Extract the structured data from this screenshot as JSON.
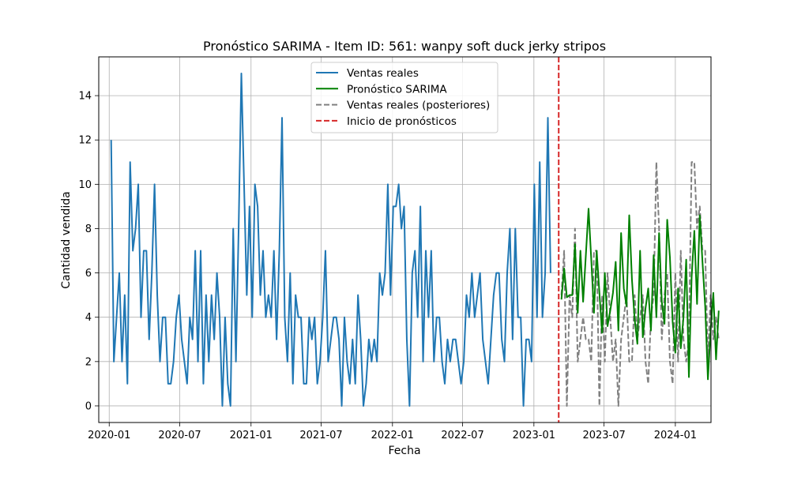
{
  "chart_data": {
    "type": "line",
    "title": "Pronóstico SARIMA - Item ID: 561: wanpy soft duck jerky stripos",
    "xlabel": "Fecha",
    "ylabel": "Cantidad vendida",
    "xlim": [
      "2019-12-05",
      "2024-04-02"
    ],
    "ylim": [
      -0.75,
      15.75
    ],
    "grid": true,
    "legend_position": "top-center",
    "x_ticks": [
      "2020-01",
      "2020-07",
      "2021-01",
      "2021-07",
      "2022-01",
      "2022-07",
      "2023-01",
      "2023-07",
      "2024-01"
    ],
    "y_ticks": [
      0,
      2,
      4,
      6,
      8,
      10,
      12,
      14
    ],
    "forecast_start": "2023-03-06",
    "series": [
      {
        "name": "Ventas reales",
        "color": "#1f77b4",
        "style": "solid",
        "start": "2020-01-06",
        "interval_days": 7,
        "values": [
          12,
          2,
          4,
          6,
          2,
          5,
          1,
          11,
          7,
          8,
          10,
          4,
          7,
          7,
          3,
          6,
          10,
          5,
          2,
          4,
          4,
          1,
          1,
          2,
          4,
          5,
          3,
          2,
          1,
          4,
          3,
          7,
          2,
          7,
          1,
          5,
          2,
          5,
          3,
          6,
          4,
          0,
          4,
          1,
          0,
          8,
          2,
          8,
          15,
          10,
          5,
          9,
          4,
          10,
          9,
          5,
          7,
          4,
          5,
          4,
          7,
          3,
          7,
          13,
          4,
          2,
          6,
          1,
          5,
          4,
          4,
          1,
          1,
          4,
          3,
          4,
          1,
          2,
          4,
          7,
          2,
          3,
          4,
          4,
          3,
          0,
          4,
          2,
          1,
          3,
          1,
          5,
          3,
          0,
          1,
          3,
          2,
          3,
          2,
          6,
          5,
          6,
          10,
          5,
          9,
          9,
          10,
          8,
          9,
          3,
          0,
          6,
          7,
          4,
          9,
          2,
          7,
          4,
          7,
          2,
          4,
          4,
          2,
          1,
          3,
          2,
          3,
          3,
          2,
          1,
          2,
          5,
          4,
          6,
          4,
          5,
          6,
          3,
          2,
          1,
          3,
          5,
          6,
          6,
          3,
          2,
          6,
          8,
          3,
          8,
          4,
          4,
          0,
          3,
          3,
          2,
          10,
          4,
          11,
          4,
          6,
          13,
          6
        ]
      },
      {
        "name": "Pronóstico SARIMA",
        "color": "#008000",
        "style": "solid",
        "start": "2023-03-13",
        "interval_days": 7,
        "values": [
          4.8,
          6.2,
          4.9,
          5.0,
          5.0,
          7.3,
          4.2,
          7.0,
          4.7,
          6.8,
          8.9,
          6.6,
          4.2,
          7.0,
          5.1,
          3.3,
          6.0,
          3.6,
          4.3,
          5.1,
          6.5,
          3.4,
          7.8,
          5.3,
          4.5,
          8.6,
          5.7,
          3.9,
          2.8,
          7.0,
          3.1,
          4.4,
          5.3,
          3.4,
          6.8,
          4.0,
          7.8,
          4.7,
          3.7,
          8.4,
          6.7,
          3.8,
          2.4,
          5.3,
          2.6,
          4.0,
          6.6,
          1.3,
          5.8,
          7.9,
          4.6,
          8.6,
          6.5,
          4.5,
          1.2,
          3.4,
          5.1,
          2.1,
          4.3
        ]
      },
      {
        "name": "Ventas reales (posteriores)",
        "color": "#808080",
        "style": "dashed",
        "start": "2023-03-13",
        "interval_days": 7,
        "values": [
          5,
          7,
          0,
          5,
          4,
          8,
          2,
          3,
          4,
          3,
          3,
          2,
          7,
          7,
          0,
          5,
          2,
          6,
          4,
          2,
          3,
          0,
          3,
          4,
          5,
          2,
          2,
          5,
          3,
          4,
          5,
          2,
          1,
          4,
          5,
          11,
          8,
          3,
          5,
          6,
          2,
          1,
          6,
          2,
          7,
          3,
          2,
          3,
          11,
          11,
          8,
          9,
          7,
          7,
          2,
          5,
          3,
          4,
          3
        ]
      },
      {
        "name": "Inicio de pronósticos",
        "color": "#d62728",
        "style": "dashed"
      }
    ]
  }
}
